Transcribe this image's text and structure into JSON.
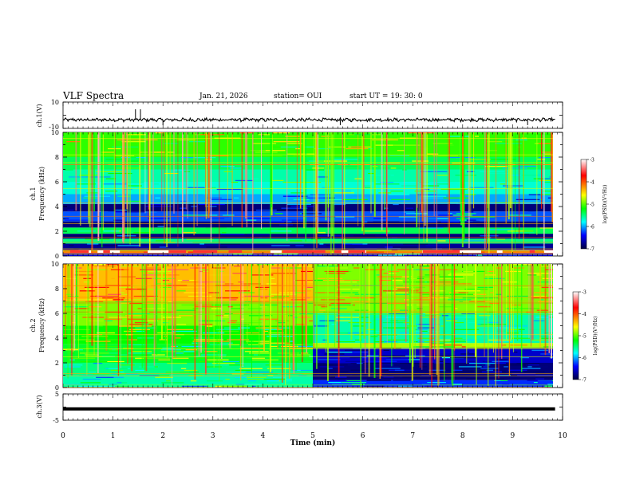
{
  "header": {
    "title": "VLF Spectra",
    "date": "Jan. 21, 2026",
    "station": "station= OUI",
    "start": "start  UT =  19: 30: 0"
  },
  "chart_data": [
    {
      "type": "line",
      "name": "ch1-waveform",
      "ylabel": "ch.1(V)",
      "ylim": [
        -10,
        10
      ],
      "yticks": [
        "10",
        "-10"
      ],
      "baseline_v": -3.5,
      "series": [
        {
          "name": "ch1",
          "description_value_level": -3.5
        }
      ]
    },
    {
      "type": "heatmap",
      "name": "ch1-spectrogram",
      "ylabel_top": "ch.1",
      "ylabel": "Frequency (kHz)",
      "ylim": [
        0,
        10
      ],
      "yticks": [
        "0",
        "2",
        "4",
        "6",
        "8",
        "10"
      ],
      "colorbar": {
        "label": "log(PSD)(V²/Hz)",
        "ticks": [
          "-3",
          "-4",
          "-5",
          "-6",
          "-7"
        ],
        "range": [
          -7,
          -3
        ]
      },
      "bands_khz": [
        {
          "from": 0.0,
          "to": 0.2,
          "level": -6.5
        },
        {
          "from": 0.2,
          "to": 0.5,
          "level": -4.2
        },
        {
          "from": 0.5,
          "to": 1.0,
          "level": -6.8
        },
        {
          "from": 1.0,
          "to": 1.4,
          "level": -5.5
        },
        {
          "from": 1.4,
          "to": 1.8,
          "level": -6.9
        },
        {
          "from": 1.8,
          "to": 2.3,
          "level": -5.4
        },
        {
          "from": 2.3,
          "to": 2.8,
          "level": -6.9
        },
        {
          "from": 2.8,
          "to": 3.6,
          "level": -6.2
        },
        {
          "from": 3.6,
          "to": 4.2,
          "level": -6.9
        },
        {
          "from": 4.2,
          "to": 5.0,
          "level": -6.0
        },
        {
          "from": 5.0,
          "to": 6.0,
          "level": -5.7
        },
        {
          "from": 6.0,
          "to": 7.0,
          "level": -5.6
        },
        {
          "from": 7.0,
          "to": 8.0,
          "level": -5.4
        },
        {
          "from": 8.0,
          "to": 10.0,
          "level": -5.1
        }
      ]
    },
    {
      "type": "heatmap",
      "name": "ch2-spectrogram",
      "ylabel_top": "ch.2",
      "ylabel": "Frequency (kHz)",
      "ylim": [
        0,
        10
      ],
      "yticks": [
        "0",
        "2",
        "4",
        "6",
        "8",
        "10"
      ],
      "colorbar": {
        "label": "log(PSD)(V²/Hz)",
        "ticks": [
          "-3",
          "-4",
          "-5",
          "-6",
          "-7"
        ],
        "range": [
          -7,
          -3
        ]
      },
      "bands_khz": [
        {
          "from": 0.0,
          "to": 1.0,
          "level": -5.6
        },
        {
          "from": 1.0,
          "to": 2.0,
          "level": -5.5
        },
        {
          "from": 2.0,
          "to": 3.5,
          "level": -5.3
        },
        {
          "from": 3.5,
          "to": 5.0,
          "level": -5.2
        },
        {
          "from": 5.0,
          "to": 7.0,
          "level": -4.9
        },
        {
          "from": 7.0,
          "to": 10.0,
          "level": -4.4
        }
      ],
      "after_5min_bands_khz": [
        {
          "from": 0.0,
          "to": 0.6,
          "level": -6.3
        },
        {
          "from": 0.6,
          "to": 2.0,
          "level": -6.9
        },
        {
          "from": 2.0,
          "to": 3.2,
          "level": -6.6
        },
        {
          "from": 3.2,
          "to": 3.6,
          "level": -4.8
        },
        {
          "from": 3.6,
          "to": 6.0,
          "level": -5.6
        },
        {
          "from": 6.0,
          "to": 10.0,
          "level": -4.9
        }
      ]
    },
    {
      "type": "line",
      "name": "ch3-waveform",
      "ylabel": "ch.3(V)",
      "ylim": [
        -5,
        5
      ],
      "yticks": [
        "5",
        "0",
        "-5"
      ],
      "series": [
        {
          "name": "ch3",
          "level": -0.7
        }
      ]
    }
  ],
  "xaxis": {
    "label": "Time (min)",
    "xlim": [
      0,
      10
    ],
    "ticks": [
      "0",
      "1",
      "2",
      "3",
      "4",
      "5",
      "6",
      "7",
      "8",
      "9",
      "10"
    ],
    "data_end_min": 9.85
  }
}
